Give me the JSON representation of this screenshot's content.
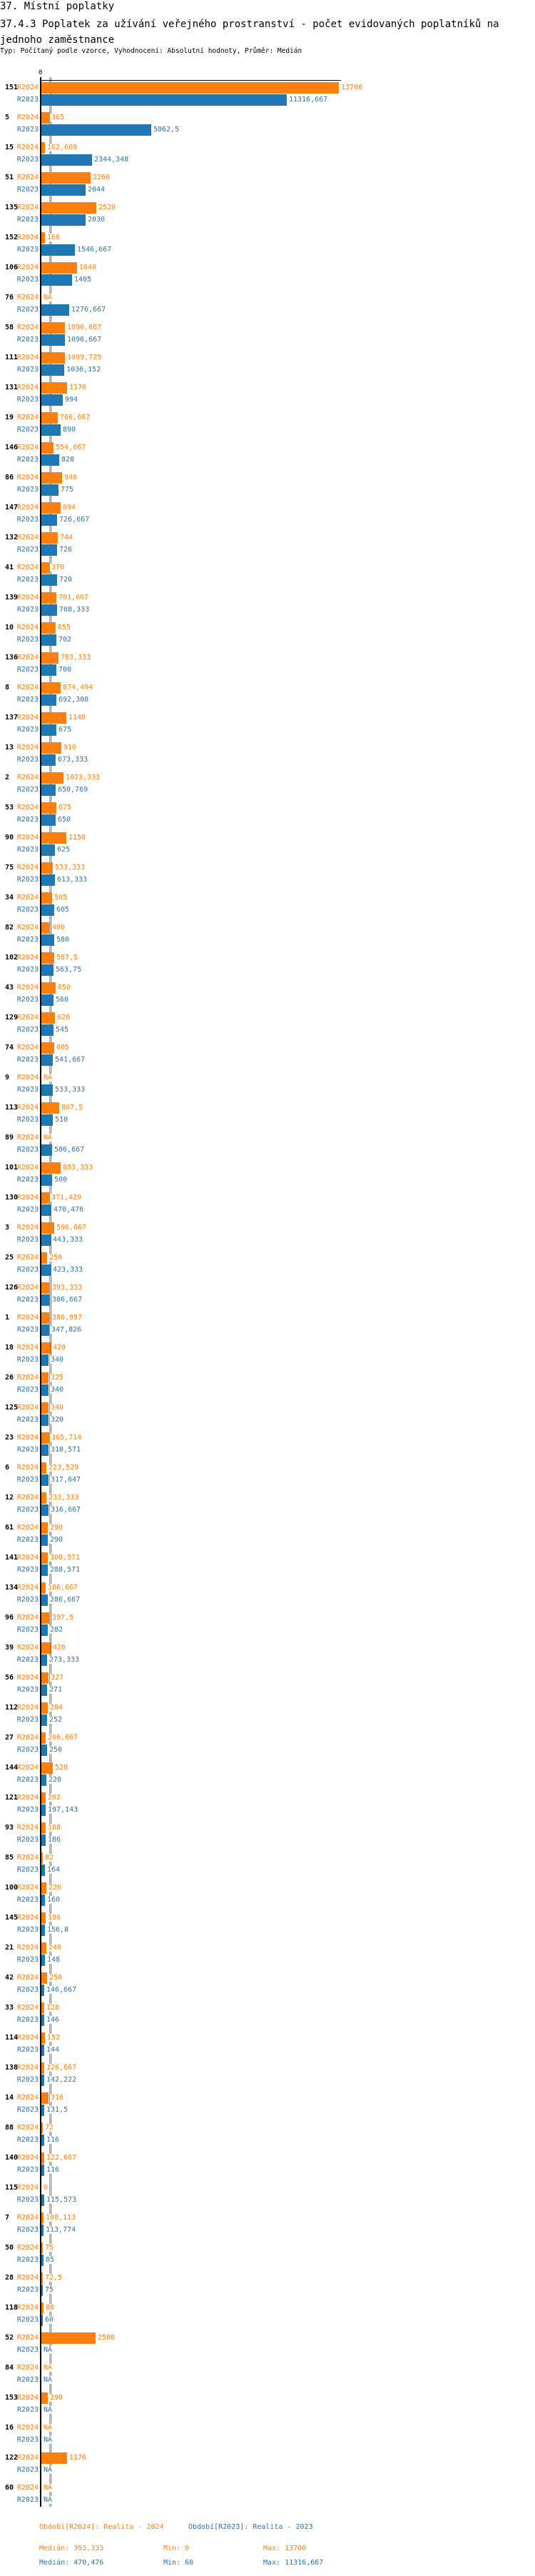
{
  "header": {
    "title": "37. Místní poplatky",
    "subtitle": "37.4.3 Poplatek za užívání veřejného prostranství - počet evidovaných poplatníků na jednoho zaměstnance",
    "meta": "Typ: Počítaný podle vzorce, Vyhodnocení: Absolutní hodnoty, Průměr: Medián"
  },
  "colors": {
    "R2024": "#ff7f0e",
    "R2023": "#1f77b4"
  },
  "chart_data": {
    "type": "bar",
    "orientation": "horizontal",
    "axis_zero_label": "0",
    "xlim": [
      0,
      13700
    ],
    "na_label": "NA",
    "categories": [
      "151",
      "5",
      "15",
      "51",
      "135",
      "152",
      "106",
      "76",
      "58",
      "111",
      "131",
      "19",
      "146",
      "86",
      "147",
      "132",
      "41",
      "139",
      "10",
      "136",
      "8",
      "137",
      "13",
      "2",
      "53",
      "90",
      "75",
      "34",
      "82",
      "102",
      "43",
      "129",
      "74",
      "9",
      "113",
      "89",
      "101",
      "130",
      "3",
      "25",
      "126",
      "1",
      "18",
      "26",
      "125",
      "23",
      "6",
      "12",
      "61",
      "141",
      "134",
      "96",
      "39",
      "56",
      "112",
      "27",
      "144",
      "121",
      "93",
      "85",
      "100",
      "145",
      "21",
      "42",
      "33",
      "114",
      "138",
      "14",
      "88",
      "140",
      "115",
      "7",
      "50",
      "28",
      "118",
      "52",
      "84",
      "153",
      "16",
      "122",
      "60"
    ],
    "series": [
      {
        "name": "R2024",
        "values": [
          13700,
          365,
          162.609,
          2260,
          2520,
          160,
          1640,
          null,
          1096.667,
          1099.725,
          1170,
          766.667,
          554.667,
          940,
          894,
          744,
          370,
          701.667,
          655,
          783.333,
          874.494,
          1140,
          910,
          1023.333,
          675,
          1150,
          533.333,
          505,
          400,
          587.5,
          650,
          620,
          605,
          null,
          807.5,
          null,
          883.333,
          371.429,
          596.667,
          250,
          393.333,
          386.957,
          420,
          325,
          340,
          365.714,
          223.529,
          233.333,
          290,
          308.571,
          186.667,
          397.5,
          420,
          327,
          284,
          206.667,
          520,
          202,
          188,
          82,
          220,
          196,
          240,
          250,
          128,
          152,
          126.667,
          316,
          72,
          122.667,
          0,
          108.113,
          75,
          72.5,
          88,
          2500,
          null,
          290,
          null,
          1176,
          null
        ]
      },
      {
        "name": "R2023",
        "values": [
          11316.667,
          5062.5,
          2344.348,
          2044,
          2030,
          1546.667,
          1405,
          1276.667,
          1096.667,
          1036.152,
          994,
          890,
          828,
          775,
          726.667,
          726,
          720,
          708.333,
          702,
          700,
          692.308,
          675,
          673.333,
          650.769,
          650,
          625,
          613.333,
          605,
          580,
          563.75,
          560,
          545,
          541.667,
          533.333,
          510,
          506.667,
          500,
          470.476,
          443.333,
          423.333,
          386.667,
          347.826,
          340,
          340,
          320,
          318.571,
          317.647,
          316.667,
          290,
          288.571,
          286.667,
          282,
          273.333,
          271,
          252,
          250,
          220,
          197.143,
          186,
          164,
          160,
          156.8,
          148,
          146.667,
          146,
          144,
          142.222,
          131.5,
          116,
          116,
          115.573,
          113.774,
          85,
          75,
          60,
          null,
          null,
          null,
          null,
          null,
          null
        ]
      }
    ],
    "medians": {
      "R2024": 393.333,
      "R2023": 470.476
    }
  },
  "footer": {
    "legend_r2024": "Období[R2024]: Realita - 2024",
    "legend_r2023": "Období[R2023]: Realita - 2023",
    "r2024": {
      "median": "Medián: 393,333",
      "min": "Min: 0",
      "max": "Max: 13700"
    },
    "r2023": {
      "median": "Medián: 470,476",
      "min": "Min: 60",
      "max": "Max: 11316,667"
    }
  }
}
